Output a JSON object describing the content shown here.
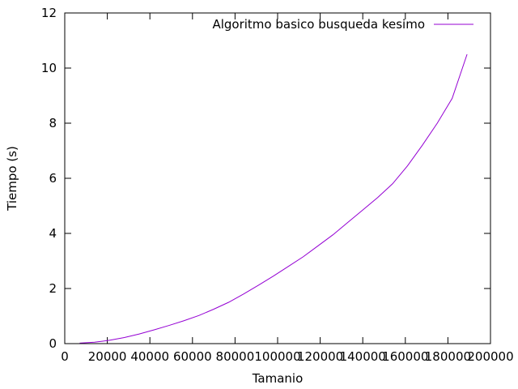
{
  "chart_data": {
    "type": "line",
    "xlabel": "Tamanio",
    "ylabel": "Tiempo (s)",
    "xlim": [
      0,
      200000
    ],
    "ylim": [
      0,
      12
    ],
    "x_ticks": [
      0,
      20000,
      40000,
      60000,
      80000,
      100000,
      120000,
      140000,
      160000,
      180000,
      200000
    ],
    "y_ticks": [
      0,
      2,
      4,
      6,
      8,
      10,
      12
    ],
    "x_tick_labels": [
      "0",
      "20000",
      "40000",
      "60000",
      "80000",
      "100000",
      "120000",
      "140000",
      "160000",
      "180000",
      "200000"
    ],
    "y_tick_labels": [
      "0",
      "2",
      "4",
      "6",
      "8",
      "10",
      "12"
    ],
    "grid": false,
    "legend_position": "top-right",
    "series": [
      {
        "name": "Algoritmo basico busqueda kesimo",
        "color": "#9400d3",
        "x": [
          7000,
          14000,
          21000,
          28000,
          35000,
          42000,
          49000,
          56000,
          63000,
          70000,
          77000,
          84000,
          91000,
          98000,
          105000,
          112000,
          119000,
          126000,
          133000,
          140000,
          147000,
          154000,
          161000,
          168000,
          175000,
          182000,
          189000
        ],
        "y": [
          0.02,
          0.05,
          0.12,
          0.22,
          0.35,
          0.5,
          0.66,
          0.83,
          1.02,
          1.25,
          1.5,
          1.8,
          2.12,
          2.45,
          2.8,
          3.15,
          3.55,
          3.95,
          4.4,
          4.85,
          5.3,
          5.8,
          6.45,
          7.2,
          8.0,
          8.9,
          10.5
        ]
      }
    ]
  }
}
